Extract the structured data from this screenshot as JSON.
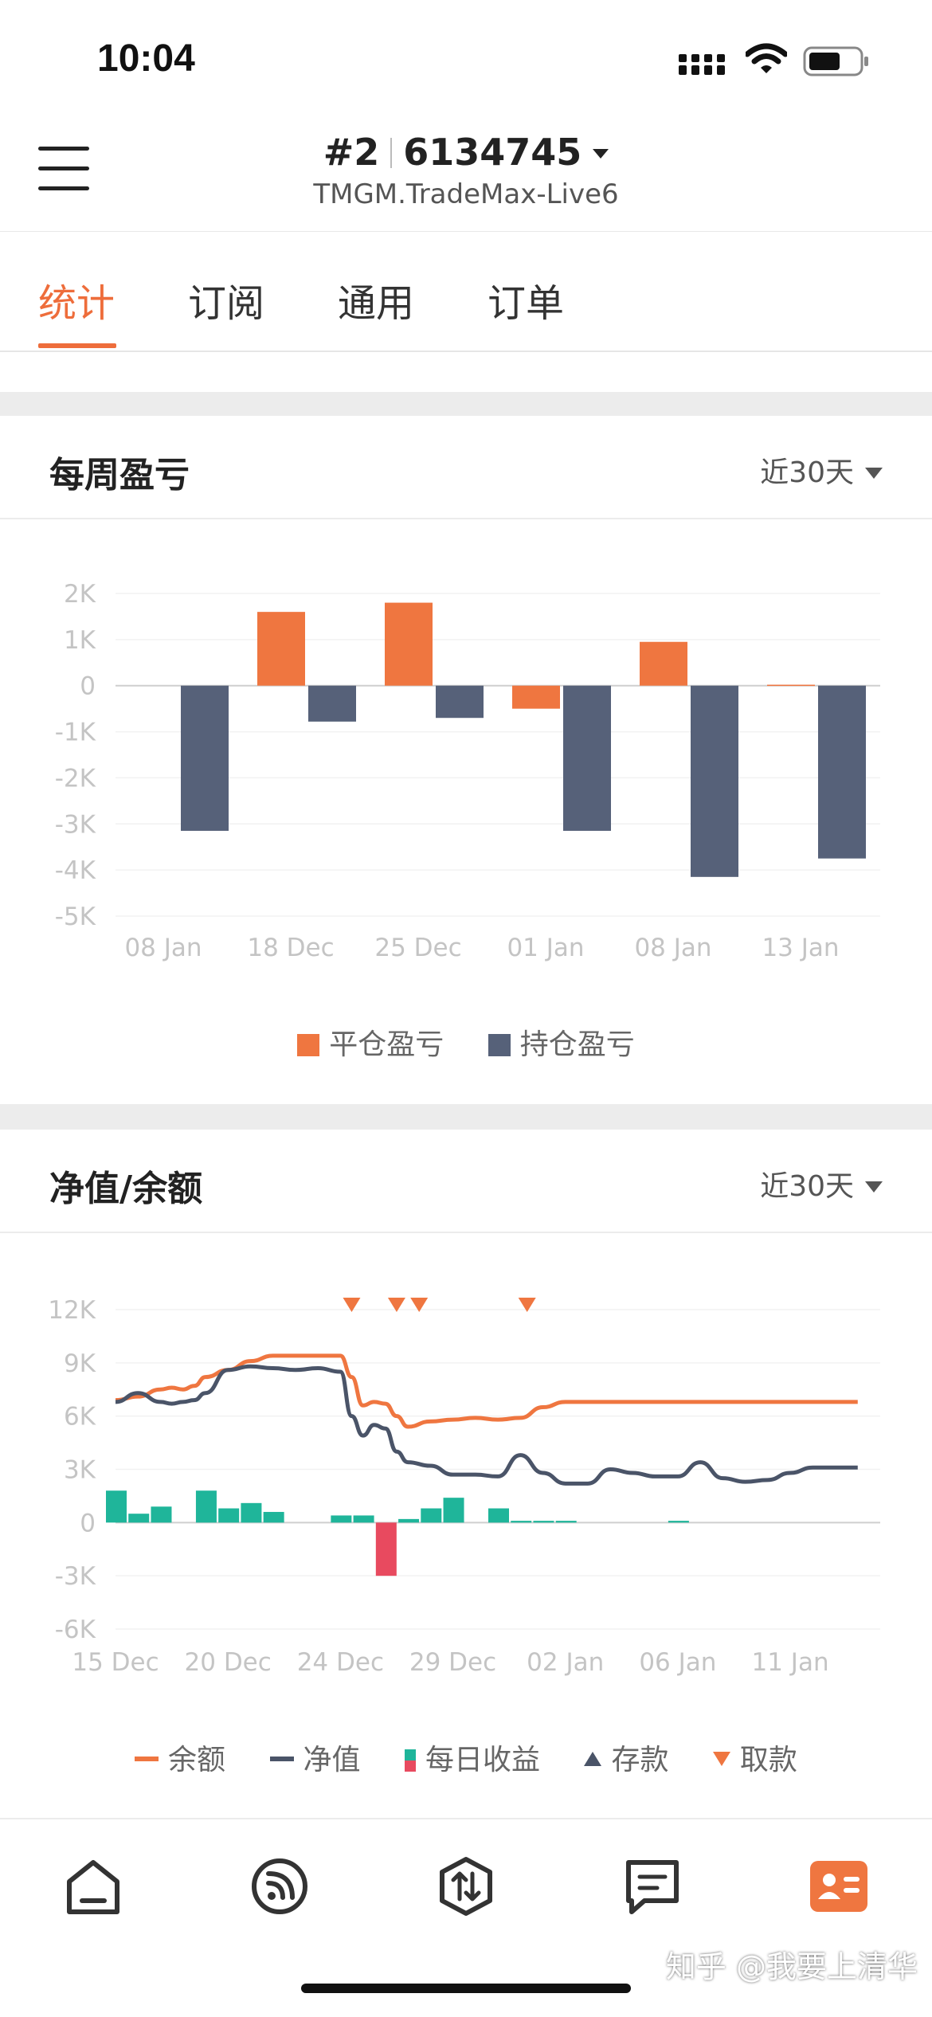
{
  "status": {
    "time": "10:04"
  },
  "header": {
    "account_index": "#2",
    "account_number": "6134745",
    "server": "TMGM.TradeMax-Live6"
  },
  "tabs": [
    {
      "label": "统计"
    },
    {
      "label": "订阅"
    },
    {
      "label": "通用"
    },
    {
      "label": "订单"
    }
  ],
  "weekly": {
    "title": "每周盈亏",
    "range": "近30天",
    "legend": {
      "closed": "平仓盈亏",
      "open": "持仓盈亏"
    },
    "chart_data": {
      "type": "bar",
      "categories": [
        "08 Jan",
        "18 Dec",
        "25 Dec",
        "01 Jan",
        "08 Jan",
        "13 Jan"
      ],
      "series": [
        {
          "name": "平仓盈亏",
          "color": "#ef7640",
          "values": [
            0,
            1600,
            1800,
            -500,
            950,
            20
          ]
        },
        {
          "name": "持仓盈亏",
          "color": "#566179",
          "values": [
            -3150,
            -780,
            -700,
            -3150,
            -4150,
            -3750
          ]
        }
      ],
      "ylim": [
        -5000,
        2000
      ],
      "yticks": [
        "2K",
        "1K",
        "0",
        "-1K",
        "-2K",
        "-3K",
        "-4K",
        "-5K"
      ],
      "grid": true,
      "legend_position": "bottom"
    }
  },
  "equity": {
    "title": "净值/余额",
    "range": "近30天",
    "legend": {
      "balance": "余额",
      "equity": "净值",
      "daily": "每日收益",
      "deposit": "存款",
      "withdraw": "取款"
    },
    "chart_data": {
      "type": "line",
      "x_ticks": [
        "15 Dec",
        "20 Dec",
        "24 Dec",
        "29 Dec",
        "02 Jan",
        "06 Jan",
        "11 Jan"
      ],
      "ylim": [
        -6000,
        12000
      ],
      "yticks": [
        "12K",
        "9K",
        "6K",
        "3K",
        "0",
        "-3K",
        "-6K"
      ],
      "grid": true,
      "legend_position": "bottom",
      "series": [
        {
          "name": "余额",
          "color": "#ef7640",
          "type": "line",
          "x": [
            0,
            1,
            2,
            2.5,
            3,
            3.5,
            4,
            5,
            6,
            7,
            8,
            9,
            10,
            10.5,
            11,
            11.5,
            12,
            12.5,
            13,
            14,
            15,
            16,
            17,
            18,
            19,
            20,
            21,
            22,
            23,
            24,
            25,
            26,
            27,
            28,
            29,
            30,
            31,
            32,
            33
          ],
          "values": [
            6900,
            7100,
            7500,
            7600,
            7500,
            7700,
            8200,
            8600,
            9100,
            9400,
            9400,
            9400,
            9400,
            8200,
            6600,
            6800,
            6700,
            6000,
            5400,
            5700,
            5800,
            5900,
            5800,
            5900,
            6500,
            6800,
            6800,
            6800,
            6800,
            6800,
            6800,
            6800,
            6800,
            6800,
            6800,
            6800,
            6800,
            6800,
            6800
          ]
        },
        {
          "name": "净值",
          "color": "#4a5468",
          "type": "line",
          "x": [
            0,
            1,
            2,
            2.5,
            3,
            3.5,
            4,
            5,
            6,
            7,
            8,
            9,
            10,
            10.5,
            11,
            11.5,
            12,
            12.5,
            13,
            14,
            15,
            16,
            17,
            18,
            19,
            20,
            21,
            22,
            23,
            24,
            25,
            26,
            27,
            28,
            29,
            30,
            31,
            32,
            33
          ],
          "values": [
            6800,
            7300,
            6800,
            6700,
            6800,
            6900,
            7300,
            8600,
            8800,
            8700,
            8600,
            8700,
            8500,
            6000,
            4900,
            5500,
            5300,
            4000,
            3400,
            3200,
            2700,
            2700,
            2600,
            3800,
            2800,
            2200,
            2200,
            3000,
            2800,
            2600,
            2600,
            3400,
            2500,
            2300,
            2400,
            2800,
            3100,
            3100,
            3100
          ]
        },
        {
          "name": "每日收益",
          "type": "bar",
          "color_pos": "#1fb59a",
          "color_neg": "#e84a5f",
          "x": [
            0,
            1,
            2,
            4,
            5,
            6,
            7,
            10,
            11,
            12,
            13,
            14,
            15,
            17,
            18,
            19,
            20,
            25
          ],
          "values": [
            1800,
            500,
            900,
            1800,
            800,
            1100,
            600,
            400,
            400,
            -3000,
            200,
            800,
            1400,
            800,
            100,
            100,
            100,
            100
          ]
        },
        {
          "name": "取款",
          "type": "marker",
          "color": "#ef7640",
          "x": [
            10.5,
            12.5,
            13.5,
            18.3
          ]
        }
      ]
    }
  },
  "nav": {
    "items": [
      "home",
      "signal",
      "trade",
      "messages",
      "account"
    ]
  },
  "watermark": "知乎 @我要上清华"
}
